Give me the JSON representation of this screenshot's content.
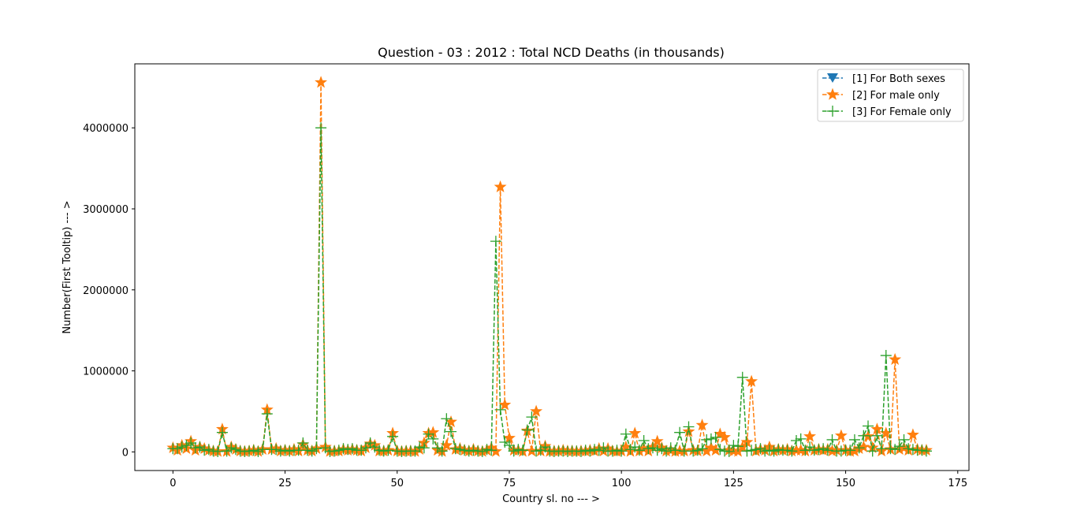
{
  "chart_data": {
    "type": "line",
    "title": "Question - 03 : 2012 : Total NCD Deaths (in thousands)",
    "xlabel": "Country sl. no --- >",
    "ylabel": "Number(First Tooltip) --- >",
    "xlim": [
      -8.5,
      177.5
    ],
    "ylim": [
      -230000,
      4790000
    ],
    "xticks": [
      0,
      25,
      50,
      75,
      100,
      125,
      150,
      175
    ],
    "yticks": [
      0,
      1000000,
      2000000,
      3000000,
      4000000
    ],
    "grid": false,
    "legend_position": "top-right",
    "series": [
      {
        "name": "[1] For Both sexes",
        "color": "#1f77b4",
        "marker": "triangle-down",
        "linestyle": "dashed",
        "values": []
      },
      {
        "name": "[2] For male only",
        "color": "#ff7f0e",
        "marker": "star",
        "linestyle": "dashed",
        "values": [
          50000,
          20000,
          80000,
          40000,
          130000,
          20000,
          60000,
          40000,
          20000,
          10000,
          5000,
          280000,
          5000,
          60000,
          30000,
          10000,
          5000,
          10000,
          20000,
          5000,
          30000,
          520000,
          30000,
          40000,
          10000,
          20000,
          10000,
          30000,
          10000,
          90000,
          20000,
          10000,
          40000,
          4560000,
          60000,
          5000,
          10000,
          10000,
          30000,
          20000,
          30000,
          20000,
          10000,
          50000,
          100000,
          80000,
          10000,
          10000,
          20000,
          230000,
          10000,
          5000,
          10000,
          10000,
          5000,
          30000,
          110000,
          230000,
          240000,
          20000,
          5000,
          80000,
          370000,
          30000,
          40000,
          20000,
          10000,
          30000,
          10000,
          5000,
          20000,
          50000,
          5000,
          3270000,
          580000,
          170000,
          20000,
          20000,
          5000,
          260000,
          10000,
          500000,
          10000,
          70000,
          5000,
          10000,
          10000,
          20000,
          10000,
          10000,
          5000,
          10000,
          10000,
          20000,
          10000,
          40000,
          10000,
          40000,
          10000,
          5000,
          10000,
          60000,
          5000,
          230000,
          10000,
          40000,
          10000,
          60000,
          130000,
          50000,
          10000,
          20000,
          5000,
          10000,
          10000,
          250000,
          20000,
          10000,
          330000,
          10000,
          50000,
          20000,
          220000,
          180000,
          20000,
          10000,
          5000,
          60000,
          120000,
          870000,
          10000,
          30000,
          20000,
          60000,
          10000,
          30000,
          20000,
          30000,
          10000,
          20000,
          20000,
          10000,
          190000,
          20000,
          30000,
          20000,
          30000,
          10000,
          20000,
          200000,
          20000,
          5000,
          10000,
          40000,
          60000,
          190000,
          50000,
          280000,
          10000,
          230000,
          30000,
          1140000,
          30000,
          50000,
          20000,
          210000,
          30000,
          20000,
          20000
        ],
        "x_start": 0
      },
      {
        "name": "[3] For Female only",
        "color": "#2ca02c",
        "marker": "plus",
        "linestyle": "dashed",
        "values": [
          40000,
          40000,
          60000,
          80000,
          110000,
          50000,
          60000,
          20000,
          30000,
          10000,
          5000,
          240000,
          10000,
          50000,
          30000,
          10000,
          5000,
          10000,
          20000,
          5000,
          30000,
          470000,
          30000,
          30000,
          10000,
          20000,
          10000,
          20000,
          20000,
          110000,
          20000,
          10000,
          40000,
          4000000,
          50000,
          5000,
          10000,
          20000,
          40000,
          30000,
          40000,
          20000,
          20000,
          50000,
          110000,
          60000,
          20000,
          10000,
          20000,
          190000,
          10000,
          5000,
          10000,
          10000,
          10000,
          60000,
          50000,
          220000,
          160000,
          50000,
          10000,
          410000,
          250000,
          40000,
          30000,
          20000,
          10000,
          20000,
          10000,
          5000,
          30000,
          20000,
          2600000,
          520000,
          120000,
          80000,
          10000,
          30000,
          20000,
          270000,
          430000,
          10000,
          20000,
          60000,
          10000,
          5000,
          10000,
          10000,
          5000,
          10000,
          10000,
          5000,
          20000,
          10000,
          30000,
          20000,
          50000,
          10000,
          10000,
          20000,
          10000,
          220000,
          30000,
          60000,
          20000,
          140000,
          40000,
          50000,
          20000,
          40000,
          10000,
          50000,
          20000,
          240000,
          10000,
          310000,
          10000,
          20000,
          40000,
          150000,
          160000,
          180000,
          30000,
          10000,
          5000,
          80000,
          70000,
          920000,
          10000,
          20000,
          30000,
          40000,
          10000,
          20000,
          10000,
          30000,
          20000,
          20000,
          10000,
          140000,
          160000,
          20000,
          60000,
          20000,
          30000,
          40000,
          20000,
          150000,
          10000,
          10000,
          20000,
          20000,
          150000,
          50000,
          200000,
          320000,
          10000,
          200000,
          40000,
          1190000,
          40000,
          30000,
          70000,
          150000,
          40000,
          30000,
          20000,
          20000,
          10000
        ],
        "x_start": 0
      }
    ]
  }
}
